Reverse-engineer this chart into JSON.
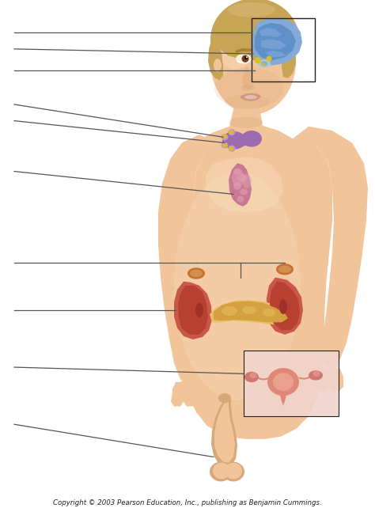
{
  "fig_width": 4.74,
  "fig_height": 6.42,
  "dpi": 100,
  "bg_color": "#ffffff",
  "copyright_text": "Copyright © 2003 Pearson Education, Inc., publishing as Benjamin Cummings.",
  "copyright_fontsize": 6.2,
  "copyright_color": "#222222",
  "line_color": "#555555",
  "line_width": 0.9,
  "skin": "#F2C49A",
  "skin_shadow": "#D9A878",
  "skin_light": "#F8DFC0",
  "hair": "#C8A455",
  "hair_dark": "#A07830",
  "blue_brain": "#6090C8",
  "blue_brain2": "#84AADA",
  "purple_thyroid": "#9B6CB0",
  "purple_parathyroid": "#C890D8",
  "pink_thymus": "#C87890",
  "pink_thymus2": "#E0A0B0",
  "red_kidney": "#B84030",
  "red_kidney2": "#C85848",
  "orange_adrenal": "#C87030",
  "yellow_pancreas": "#D4A040",
  "yellow_pancreas2": "#E8C060",
  "pink_repro": "#E08878",
  "pink_repro_bg": "#F5D8D0",
  "bg_repro_box": "#F0D5CC",
  "yellow_dot": "#D8C020",
  "box_line": "#222222"
}
